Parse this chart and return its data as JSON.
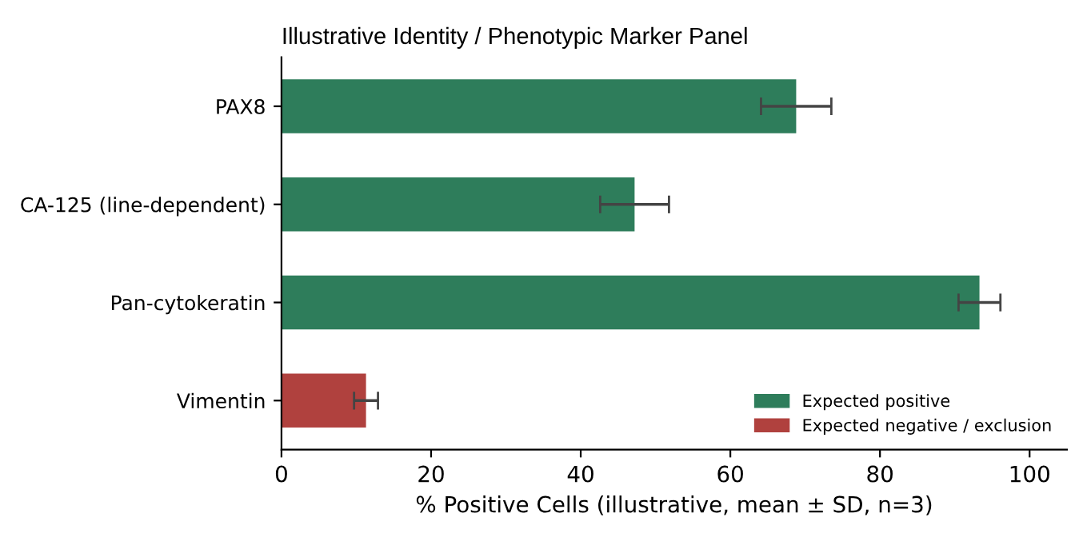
{
  "chart_data": {
    "type": "bar",
    "orientation": "horizontal",
    "title": "Illustrative Identity / Phenotypic Marker Panel",
    "xlabel": "% Positive Cells (illustrative, mean ± SD, n=3)",
    "categories": [
      "PAX8",
      "CA-125 (line-dependent)",
      "Pan-cytokeratin",
      "Vimentin"
    ],
    "series": [
      {
        "name": "Expected positive",
        "color": "#2e7d5b",
        "values": [
          68.8,
          47.2,
          93.3,
          null
        ],
        "errors": [
          4.7,
          4.6,
          2.8,
          null
        ]
      },
      {
        "name": "Expected negative / exclusion",
        "color": "#b0413e",
        "values": [
          null,
          null,
          null,
          11.3
        ],
        "errors": [
          null,
          null,
          null,
          1.6
        ]
      }
    ],
    "xlim": [
      0,
      105
    ],
    "xticks": [
      0,
      20,
      40,
      60,
      80,
      100
    ],
    "grid": false,
    "legend": "bottom right"
  }
}
